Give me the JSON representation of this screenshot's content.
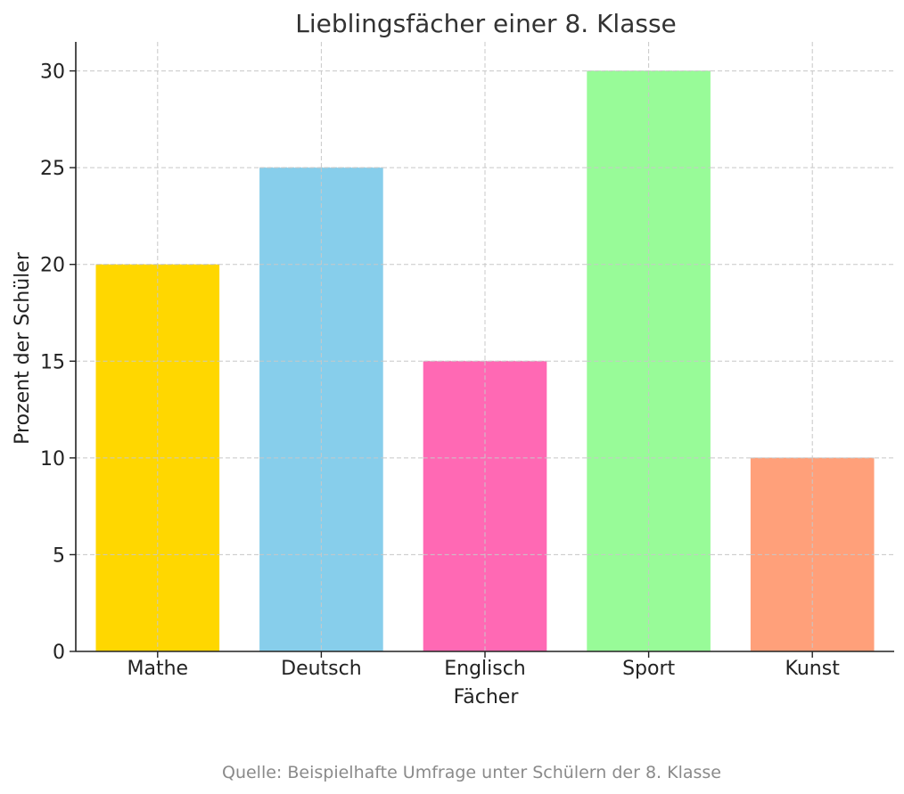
{
  "chart_data": {
    "type": "bar",
    "title": "Lieblingsfächer einer 8. Klasse",
    "xlabel": "Fächer",
    "ylabel": "Prozent der Schüler",
    "categories": [
      "Mathe",
      "Deutsch",
      "Englisch",
      "Sport",
      "Kunst"
    ],
    "values": [
      20,
      25,
      15,
      30,
      10
    ],
    "colors": [
      "#FFD700",
      "#87CEEB",
      "#FF69B4",
      "#98FB98",
      "#FFA07A"
    ],
    "ylim": [
      0,
      31.5
    ],
    "yticks": [
      0,
      5,
      10,
      15,
      20,
      25,
      30
    ],
    "grid": true,
    "source": "Quelle: Beispielhafte Umfrage unter Schülern der 8. Klasse"
  }
}
